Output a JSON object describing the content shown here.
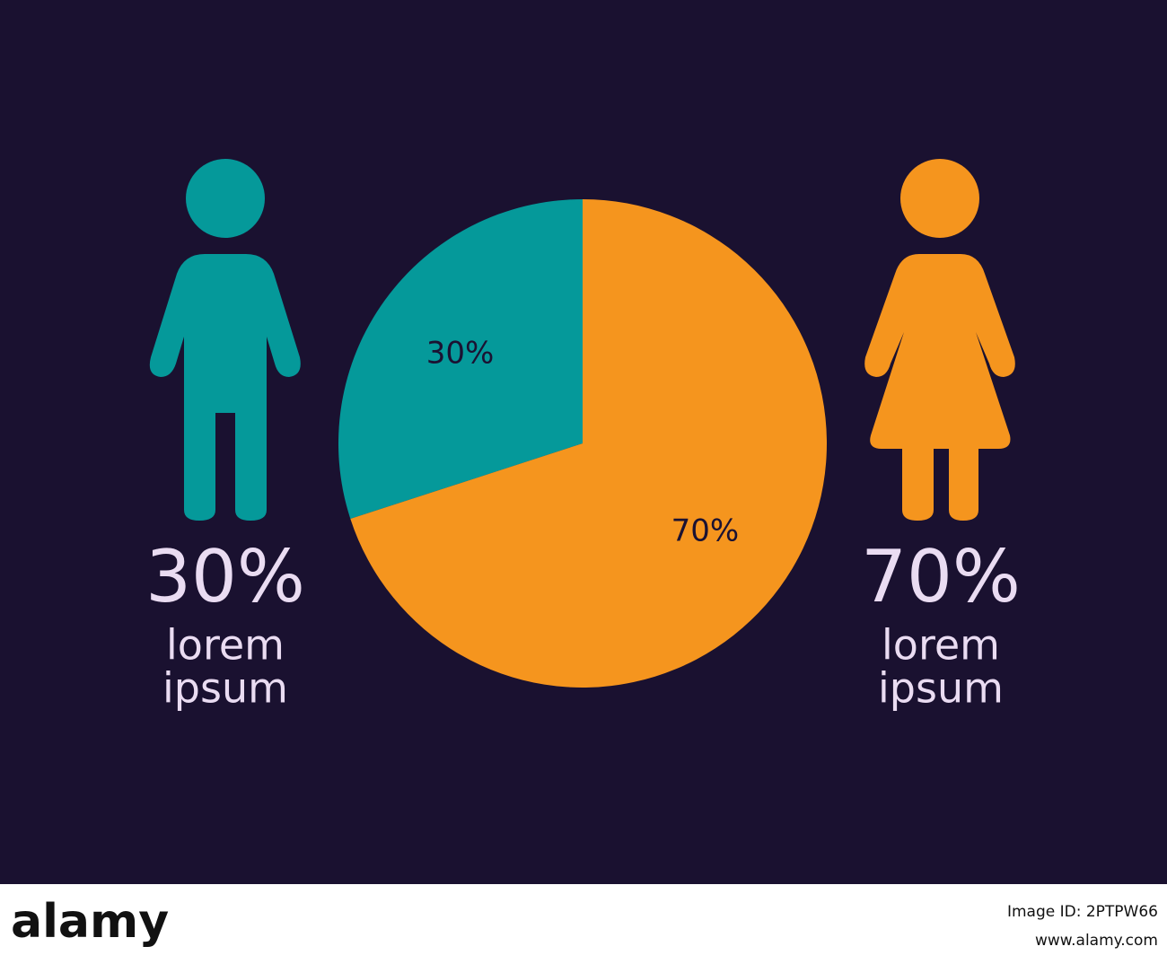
{
  "chart_data": {
    "type": "pie",
    "values": [
      30,
      70
    ],
    "value_labels": [
      "30%",
      "70%"
    ],
    "colors": [
      "#05999a",
      "#f5951e"
    ],
    "captions": [
      [
        "lorem",
        "ipsum"
      ],
      [
        "lorem",
        "ipsum"
      ]
    ]
  },
  "footer": {
    "brand": "alamy",
    "image_id": "Image ID: 2PTPW66",
    "url": "www.alamy.com"
  }
}
